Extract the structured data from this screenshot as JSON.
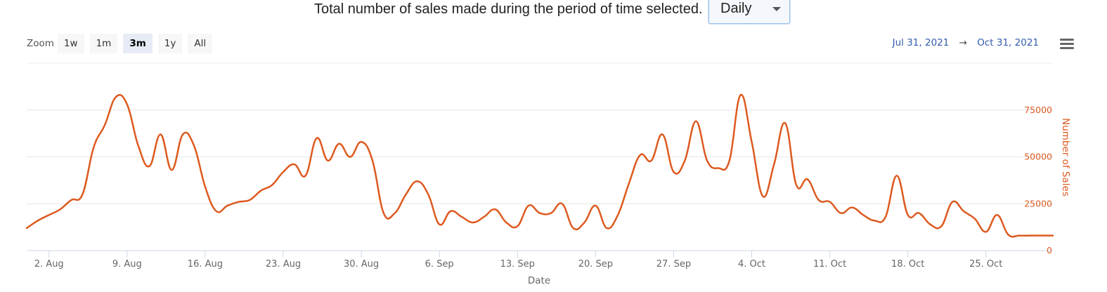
{
  "header": {
    "caption": "Total number of sales made during the period of time selected.",
    "period_select": {
      "value": "Daily"
    }
  },
  "toolbar": {
    "zoom_label": "Zoom",
    "zoom_buttons": [
      {
        "label": "1w",
        "active": false
      },
      {
        "label": "1m",
        "active": false
      },
      {
        "label": "3m",
        "active": true
      },
      {
        "label": "1y",
        "active": false
      },
      {
        "label": "All",
        "active": false
      }
    ],
    "range_from": "Jul 31, 2021",
    "range_arrow": "→",
    "range_to": "Oct 31, 2021",
    "menu_icon": "hamburger-menu-icon"
  },
  "colors": {
    "series": "#dd5a20",
    "grid": "#e6e6e6",
    "axis_line": "#ccd6eb",
    "y_axis_text": "#dd5a20",
    "range_text": "#335cad"
  },
  "chart_data": {
    "type": "line",
    "xlabel": "Date",
    "ylabel": "Number of Sales",
    "x_range": [
      "2021-07-31",
      "2021-10-31"
    ],
    "ylim": [
      0,
      100000
    ],
    "y_ticks": [
      0,
      25000,
      50000,
      75000
    ],
    "y_tick_labels": [
      "0",
      "25000",
      "50000",
      "75000"
    ],
    "x_ticks": [
      "2021-08-02",
      "2021-08-09",
      "2021-08-16",
      "2021-08-23",
      "2021-08-30",
      "2021-09-06",
      "2021-09-13",
      "2021-09-20",
      "2021-09-27",
      "2021-10-04",
      "2021-10-11",
      "2021-10-18",
      "2021-10-25"
    ],
    "x_tick_labels": [
      "2. Aug",
      "9. Aug",
      "16. Aug",
      "23. Aug",
      "30. Aug",
      "6. Sep",
      "13. Sep",
      "20. Sep",
      "27. Sep",
      "4. Oct",
      "11. Oct",
      "18. Oct",
      "25. Oct"
    ],
    "grid": true,
    "legend": "none",
    "series": [
      {
        "x": [
          "2021-07-31",
          "2021-08-01",
          "2021-08-02",
          "2021-08-03",
          "2021-08-04",
          "2021-08-05",
          "2021-08-06",
          "2021-08-07",
          "2021-08-08",
          "2021-08-09",
          "2021-08-10",
          "2021-08-11",
          "2021-08-12",
          "2021-08-13",
          "2021-08-14",
          "2021-08-15",
          "2021-08-16",
          "2021-08-17",
          "2021-08-18",
          "2021-08-19",
          "2021-08-20",
          "2021-08-21",
          "2021-08-22",
          "2021-08-23",
          "2021-08-24",
          "2021-08-25",
          "2021-08-26",
          "2021-08-27",
          "2021-08-28",
          "2021-08-29",
          "2021-08-30",
          "2021-08-31",
          "2021-09-01",
          "2021-09-02",
          "2021-09-03",
          "2021-09-04",
          "2021-09-05",
          "2021-09-06",
          "2021-09-07",
          "2021-09-08",
          "2021-09-09",
          "2021-09-10",
          "2021-09-11",
          "2021-09-12",
          "2021-09-13",
          "2021-09-14",
          "2021-09-15",
          "2021-09-16",
          "2021-09-17",
          "2021-09-18",
          "2021-09-19",
          "2021-09-20",
          "2021-09-21",
          "2021-09-22",
          "2021-09-23",
          "2021-09-24",
          "2021-09-25",
          "2021-09-26",
          "2021-09-27",
          "2021-09-28",
          "2021-09-29",
          "2021-09-30",
          "2021-10-01",
          "2021-10-02",
          "2021-10-03",
          "2021-10-04",
          "2021-10-05",
          "2021-10-06",
          "2021-10-07",
          "2021-10-08",
          "2021-10-09",
          "2021-10-10",
          "2021-10-11",
          "2021-10-12",
          "2021-10-13",
          "2021-10-14",
          "2021-10-15",
          "2021-10-16",
          "2021-10-17",
          "2021-10-18",
          "2021-10-19",
          "2021-10-20",
          "2021-10-21",
          "2021-10-22",
          "2021-10-23",
          "2021-10-24",
          "2021-10-25",
          "2021-10-26",
          "2021-10-27",
          "2021-10-28",
          "2021-10-29",
          "2021-10-30",
          "2021-10-31"
        ],
        "values": [
          12000,
          16000,
          19000,
          22000,
          27000,
          30000,
          55000,
          67000,
          82000,
          78000,
          56000,
          45000,
          62000,
          43000,
          62000,
          56000,
          34000,
          21000,
          24000,
          26000,
          27000,
          32000,
          35000,
          42000,
          46000,
          40000,
          60000,
          48000,
          57000,
          50000,
          58000,
          48000,
          20000,
          20000,
          30000,
          37000,
          30000,
          14000,
          21000,
          18000,
          15000,
          18000,
          22000,
          15000,
          13000,
          24000,
          20000,
          20000,
          25000,
          12000,
          15000,
          24000,
          12000,
          19000,
          36000,
          51000,
          48000,
          62000,
          42000,
          48000,
          69000,
          48000,
          44000,
          48000,
          83000,
          58000,
          29000,
          46000,
          68000,
          35000,
          38000,
          27000,
          26000,
          20000,
          23000,
          19000,
          16000,
          18000,
          40000,
          19000,
          20000,
          14000,
          13000,
          26000,
          21000,
          17000,
          10000,
          19000,
          8500,
          8000,
          8000,
          8000,
          8000
        ]
      }
    ]
  }
}
